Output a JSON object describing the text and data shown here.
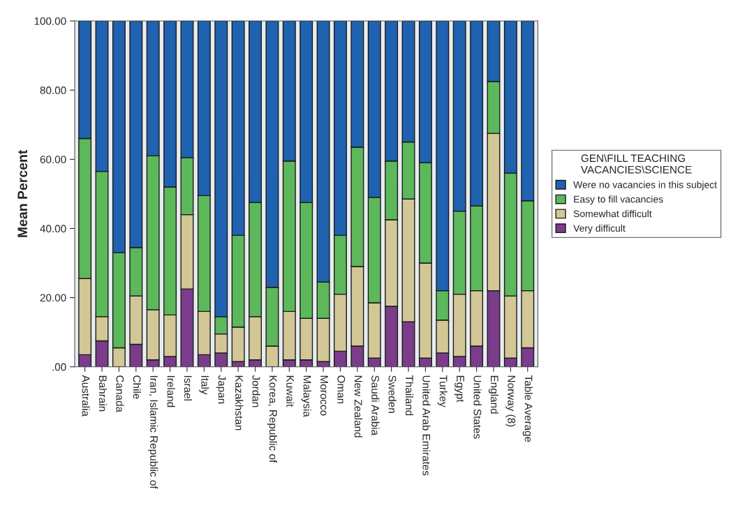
{
  "chart_data": {
    "type": "bar",
    "stacked": true,
    "ylabel": "Mean Percent",
    "legend_title": "GEN\\FILL TEACHING\nVACANCIES\\SCIENCE",
    "categories": [
      "Australia",
      "Bahrain",
      "Canada",
      "Chile",
      "Iran, Islamic Republic of",
      "Ireland",
      "Israel",
      "Italy",
      "Japan",
      "Kazakhstan",
      "Jordan",
      "Korea, Republic of",
      "Kuwait",
      "Malaysia",
      "Morocco",
      "Oman",
      "New Zealand",
      "Saudi Arabia",
      "Sweden",
      "Thailand",
      "United Arab Emirates",
      "Turkey",
      "Egypt",
      "United States",
      "England",
      "Norway (8)",
      "Table Average"
    ],
    "series": [
      {
        "name": "Very difficult",
        "color": "#7b3c8c",
        "values": [
          3.5,
          7.5,
          null,
          6.5,
          2,
          3,
          22.5,
          3.5,
          4,
          1.5,
          2,
          0,
          2,
          2,
          1.5,
          4.5,
          6,
          2.5,
          17.5,
          13,
          2.5,
          4,
          3,
          6,
          22,
          2.5,
          5.5
        ]
      },
      {
        "name": "Somewhat difficult",
        "color": "#d2c795",
        "values": [
          22,
          7,
          5.5,
          14,
          14.5,
          12,
          21.5,
          12.5,
          5.5,
          10,
          12.5,
          6,
          14,
          12,
          12.5,
          16.5,
          23,
          16,
          25,
          35.5,
          27.5,
          9.5,
          18,
          16,
          45.5,
          18,
          16.5
        ]
      },
      {
        "name": "Easy to fill vacancies",
        "color": "#5cb85a",
        "values": [
          40.5,
          42,
          27.5,
          14,
          44.5,
          37,
          16.5,
          33.5,
          5,
          26.5,
          33,
          17,
          43.5,
          33.5,
          10.5,
          17,
          34.5,
          30.5,
          17,
          16.5,
          29,
          8.5,
          24,
          24.5,
          15,
          35.5,
          26
        ]
      },
      {
        "name": "Were no vacancies in this subject",
        "color": "#1f62b0",
        "values": [
          34,
          43.5,
          67,
          65.5,
          39,
          48,
          39.5,
          50.5,
          85.5,
          62,
          52.5,
          77,
          40.5,
          52.5,
          75.5,
          62,
          36.5,
          51,
          40.5,
          35,
          41,
          78,
          55,
          53.5,
          17.5,
          44,
          52
        ]
      }
    ],
    "ylim": [
      0,
      100
    ],
    "yticks": [
      {
        "value": 0,
        "label": ".00"
      },
      {
        "value": 20,
        "label": "20.00"
      },
      {
        "value": 40,
        "label": "40.00"
      },
      {
        "value": 60,
        "label": "60.00"
      },
      {
        "value": 80,
        "label": "80.00"
      },
      {
        "value": 100,
        "label": "100.00"
      }
    ],
    "grid": false,
    "legend": "right"
  }
}
